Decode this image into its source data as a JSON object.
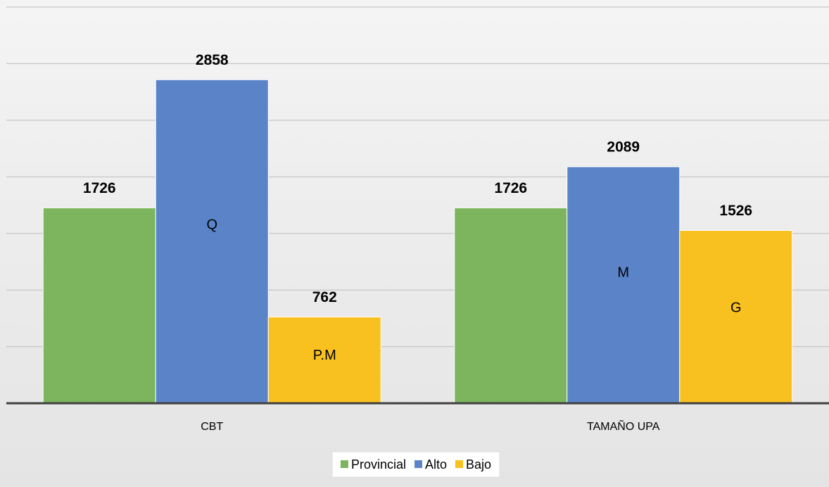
{
  "chart_data": {
    "type": "bar",
    "categories": [
      "CBT",
      "TAMAÑO UPA"
    ],
    "series": [
      {
        "name": "Provincial",
        "color": "#7cb55e",
        "values": [
          1726,
          1726
        ]
      },
      {
        "name": "Alto",
        "color": "#5b84c8",
        "values": [
          2858,
          2089
        ],
        "inner_labels": [
          "Q",
          "M"
        ]
      },
      {
        "name": "Bajo",
        "color": "#f9c11f",
        "values": [
          762,
          1526
        ],
        "inner_labels": [
          "P.M",
          "G"
        ]
      }
    ],
    "ylim": [
      0,
      3500
    ],
    "yticks": [
      0,
      500,
      1000,
      1500,
      2000,
      2500,
      3000,
      3500
    ],
    "grid": true,
    "legend": "bottom"
  }
}
